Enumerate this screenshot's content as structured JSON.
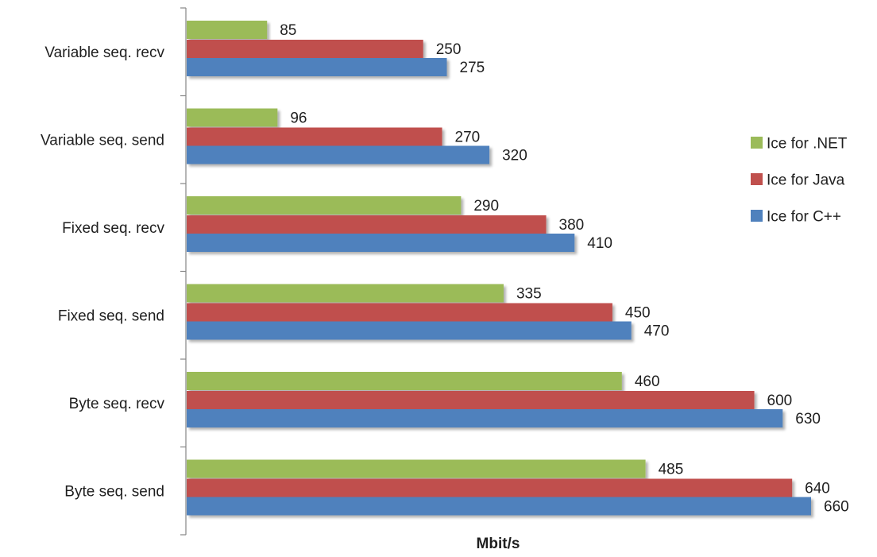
{
  "chart_data": {
    "type": "bar",
    "orientation": "horizontal",
    "categories": [
      "Variable seq. recv",
      "Variable seq. send",
      "Fixed seq. recv",
      "Fixed seq. send",
      "Byte seq. recv",
      "Byte seq. send"
    ],
    "series": [
      {
        "name": "Ice for .NET",
        "color": "#9bbb59",
        "values": [
          85,
          96,
          290,
          335,
          460,
          485
        ]
      },
      {
        "name": "Ice for Java",
        "color": "#c0504d",
        "values": [
          250,
          270,
          380,
          450,
          600,
          640
        ]
      },
      {
        "name": "Ice for C++",
        "color": "#4f81bd",
        "values": [
          275,
          320,
          410,
          470,
          630,
          660
        ]
      }
    ],
    "xlabel": "Mbit/s",
    "ylabel": "",
    "xlim": [
      0,
      700
    ],
    "grid": false,
    "data_labels": true,
    "legend_position": "right"
  }
}
